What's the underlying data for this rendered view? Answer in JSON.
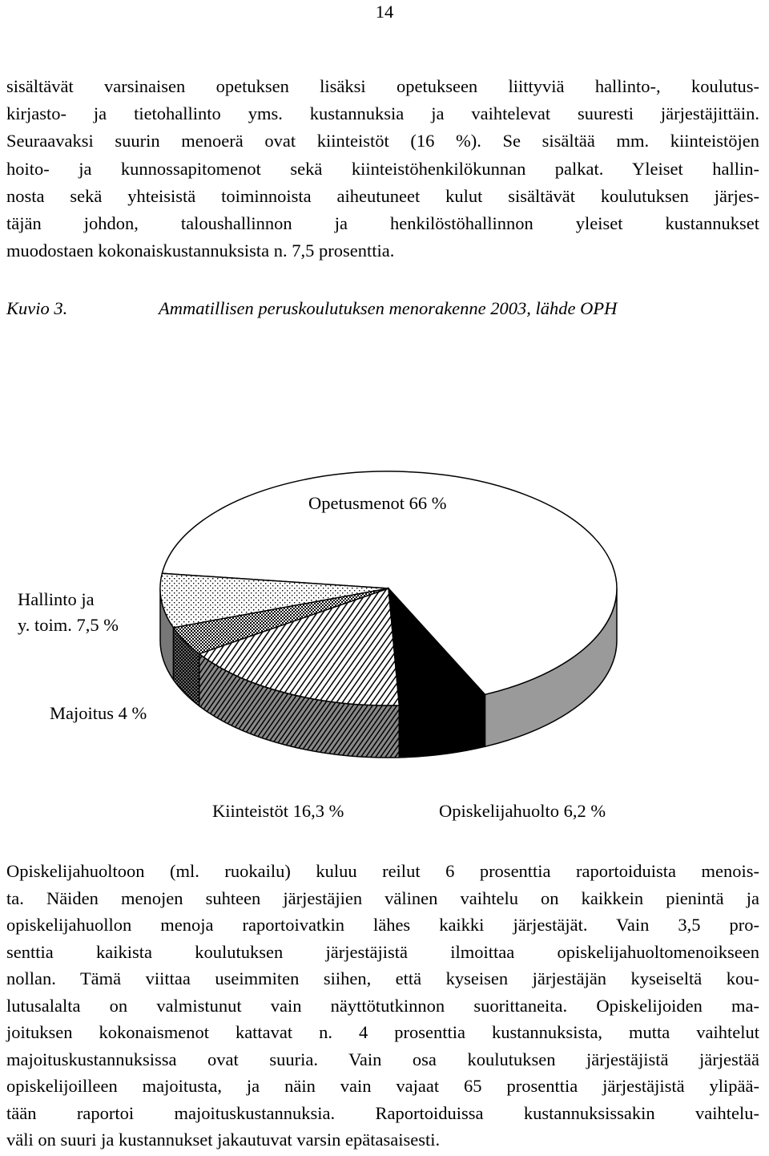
{
  "page_number": "14",
  "paragraphs": [
    {
      "lines": [
        "sisältävät varsinaisen opetuksen lisäksi opetukseen liittyviä hallinto-, koulutus-",
        "kirjasto- ja tietohallinto yms. kustannuksia ja vaihtelevat suuresti järjestäjittäin.",
        "Seuraavaksi suurin menoerä ovat kiinteistöt (16 %). Se sisältää mm. kiinteistöjen",
        "hoito- ja kunnossapitomenot sekä kiinteistöhenkilökunnan palkat. Yleiset hallin-",
        "nosta sekä yhteisistä toiminnoista aiheutuneet kulut sisältävät koulutuksen järjes-",
        "täjän johdon, taloushallinnon ja henkilöstöhallinnon yleiset kustannukset",
        "muodostaen kokonaiskustannuksista n. 7,5 prosenttia."
      ]
    },
    {
      "lines": [
        "Opiskelijahuoltoon (ml. ruokailu) kuluu reilut 6 prosenttia raportoiduista menois-",
        "ta. Näiden menojen suhteen järjestäjien välinen vaihtelu on kaikkein pienintä ja",
        "opiskelijahuollon menoja raportoivatkin lähes kaikki järjestäjät. Vain 3,5 pro-",
        "senttia kaikista koulutuksen järjestäjistä ilmoittaa opiskelijahuoltomenoikseen",
        "nollan. Tämä viittaa useimmiten siihen, että kyseisen järjestäjän kyseiseltä kou-",
        "lutusalalta on valmistunut vain näyttötutkinnon suorittaneita. Opiskelijoiden ma-",
        "joituksen kokonaismenot kattavat n. 4 prosenttia kustannuksista, mutta vaihtelut",
        "majoituskustannuksissa ovat suuria. Vain osa koulutuksen järjestäjistä järjestää",
        "opiskelijoilleen majoitusta, ja näin vain vajaat 65 prosenttia järjestäjistä ylipää-",
        "tään raportoi majoituskustannuksia. Raportoiduissa kustannuksissakin vaihtelu-",
        "väli on suuri ja kustannukset jakautuvat varsin epätasaisesti."
      ]
    }
  ],
  "figure": {
    "label": "Kuvio 3.",
    "caption": "Ammatillisen peruskoulutuksen menorakenne 2003, lähde OPH"
  },
  "chart_data": {
    "type": "pie",
    "values": [
      66,
      7.5,
      4,
      16.3,
      6.2
    ],
    "value_labels": [
      "Opetusmenot 66 %",
      "Hallinto ja\ny. toim. 7,5 %",
      "Majoitus 4 %",
      "Kiinteistöt 16,3 %",
      "Opiskelijahuolto 6,2 %"
    ]
  }
}
